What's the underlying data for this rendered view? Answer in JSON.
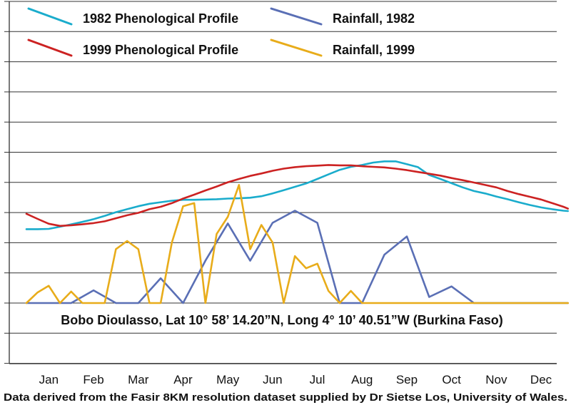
{
  "chart_data": {
    "type": "line",
    "title": "",
    "xlabel": "",
    "ylabel": "",
    "categories": [
      "Jan",
      "Feb",
      "Mar",
      "Apr",
      "May",
      "Jun",
      "Jul",
      "Aug",
      "Sep",
      "Oct",
      "Nov",
      "Dec"
    ],
    "x_range": [
      0.5,
      12.6
    ],
    "grid": "horizontal",
    "legend_position": "top",
    "annotation": "Bobo Dioulasso, Lat 10° 58’ 14.20”N, Long 4° 10’ 40.51”W (Burkina Faso)",
    "footer": "Data derived from the Fasir 8KM resolution dataset supplied by Dr Sietse Los, University of Wales.",
    "series": [
      {
        "name": "1982 Phenological Profile",
        "color": "#1aaccc",
        "x": [
          0.5,
          0.75,
          1.0,
          1.25,
          1.5,
          1.75,
          2.0,
          2.25,
          2.5,
          2.75,
          3.0,
          3.25,
          3.5,
          3.75,
          4.0,
          4.25,
          4.5,
          4.75,
          5.0,
          5.25,
          5.5,
          5.75,
          6.0,
          6.25,
          6.5,
          6.75,
          7.0,
          7.25,
          7.5,
          7.75,
          8.0,
          8.25,
          8.5,
          8.75,
          9.0,
          9.25,
          9.5,
          9.75,
          10.0,
          10.25,
          10.5,
          10.75,
          11.0,
          11.25,
          11.5,
          11.75,
          12.0,
          12.25,
          12.5,
          12.6
        ],
        "values": [
          2.44,
          2.44,
          2.45,
          2.52,
          2.6,
          2.68,
          2.77,
          2.88,
          3.0,
          3.1,
          3.2,
          3.28,
          3.33,
          3.38,
          3.41,
          3.41,
          3.42,
          3.43,
          3.45,
          3.46,
          3.48,
          3.53,
          3.62,
          3.73,
          3.84,
          3.95,
          4.1,
          4.25,
          4.4,
          4.5,
          4.56,
          4.64,
          4.68,
          4.68,
          4.59,
          4.49,
          4.23,
          4.1,
          3.96,
          3.82,
          3.7,
          3.62,
          3.52,
          3.43,
          3.33,
          3.24,
          3.16,
          3.1,
          3.05,
          3.04
        ]
      },
      {
        "name": "1999 Phenological Profile",
        "color": "#cc2222",
        "x": [
          0.5,
          0.75,
          1.0,
          1.25,
          1.5,
          1.75,
          2.0,
          2.25,
          2.5,
          2.75,
          3.0,
          3.25,
          3.5,
          3.75,
          4.0,
          4.25,
          4.5,
          4.75,
          5.0,
          5.25,
          5.5,
          5.75,
          6.0,
          6.25,
          6.5,
          6.75,
          7.0,
          7.25,
          7.5,
          7.75,
          8.0,
          8.25,
          8.5,
          8.75,
          9.0,
          9.25,
          9.5,
          9.75,
          10.0,
          10.25,
          10.5,
          10.75,
          11.0,
          11.25,
          11.5,
          11.75,
          12.0,
          12.25,
          12.5,
          12.6
        ],
        "values": [
          2.95,
          2.78,
          2.62,
          2.55,
          2.57,
          2.6,
          2.64,
          2.7,
          2.8,
          2.9,
          2.98,
          3.1,
          3.18,
          3.3,
          3.45,
          3.58,
          3.72,
          3.85,
          3.99,
          4.1,
          4.2,
          4.28,
          4.37,
          4.44,
          4.49,
          4.52,
          4.54,
          4.56,
          4.55,
          4.55,
          4.52,
          4.5,
          4.48,
          4.44,
          4.39,
          4.33,
          4.27,
          4.21,
          4.13,
          4.06,
          3.98,
          3.9,
          3.82,
          3.7,
          3.6,
          3.51,
          3.42,
          3.3,
          3.18,
          3.12
        ]
      },
      {
        "name": "Rainfall, 1982",
        "color": "#5a6fb5",
        "x": [
          0.5,
          1.0,
          1.5,
          2.0,
          2.5,
          3.0,
          3.5,
          4.0,
          4.5,
          5.0,
          5.5,
          6.0,
          6.5,
          7.0,
          7.5,
          8.0,
          8.5,
          9.0,
          9.5,
          10.0,
          10.5,
          11.0,
          11.5,
          12.0,
          12.6
        ],
        "values": [
          0.0,
          0.0,
          0.0,
          0.42,
          0.0,
          0.0,
          0.82,
          0.0,
          1.4,
          2.63,
          1.4,
          2.65,
          3.05,
          2.65,
          0.0,
          0.0,
          1.6,
          2.2,
          0.2,
          0.55,
          0.0,
          0.0,
          0.0,
          0.0,
          0.0
        ]
      },
      {
        "name": "Rainfall, 1999",
        "color": "#e8ac1a",
        "x": [
          0.5,
          0.75,
          1.0,
          1.25,
          1.5,
          1.75,
          2.0,
          2.25,
          2.5,
          2.75,
          3.0,
          3.25,
          3.5,
          3.75,
          4.0,
          4.25,
          4.5,
          4.75,
          5.0,
          5.25,
          5.5,
          5.75,
          6.0,
          6.25,
          6.5,
          6.75,
          7.0,
          7.25,
          7.5,
          7.75,
          8.0,
          8.25,
          8.5,
          8.75,
          9.0,
          9.25,
          9.5,
          9.75,
          10.0,
          10.25,
          10.5,
          10.75,
          11.0,
          11.25,
          11.5,
          11.75,
          12.0,
          12.25,
          12.5,
          12.6
        ],
        "values": [
          0.0,
          0.35,
          0.57,
          0.0,
          0.38,
          0.0,
          0.0,
          0.0,
          1.78,
          2.05,
          1.78,
          0.0,
          0.0,
          2.0,
          3.2,
          3.3,
          0.0,
          2.28,
          2.85,
          3.9,
          1.78,
          2.58,
          2.0,
          0.0,
          1.55,
          1.15,
          1.3,
          0.4,
          0.0,
          0.4,
          0.0,
          0.0,
          0.0,
          0.0,
          0.0,
          0.0,
          0.0,
          0.0,
          0.0,
          0.0,
          0.0,
          0.0,
          0.0,
          0.0,
          0.0,
          0.0,
          0.0,
          0.0,
          0.0,
          0.0
        ]
      }
    ]
  }
}
